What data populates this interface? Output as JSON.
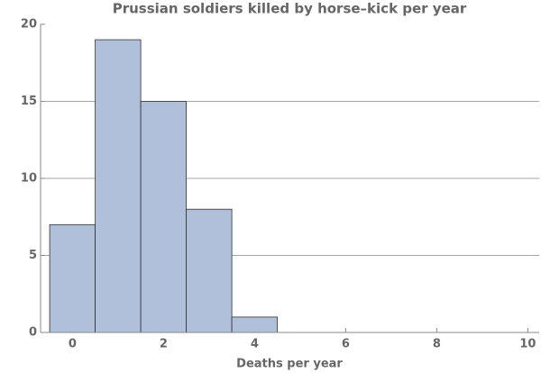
{
  "chart_data": {
    "type": "histogram",
    "title": "Prussian soldiers killed by horse–kick per year",
    "x_label": "Deaths per year",
    "bins": [
      -0.5,
      0.5,
      1.5,
      2.5,
      3.5,
      4.5
    ],
    "values": [
      7,
      19,
      15,
      8,
      1
    ],
    "color": "#b0c0db",
    "xlim": [
      -0.7,
      10.25
    ],
    "xticks": [
      0,
      2,
      4,
      6,
      8,
      10
    ],
    "ylim": [
      0,
      20
    ],
    "yticks": [
      0,
      5,
      10,
      15,
      20
    ],
    "grid": true
  }
}
